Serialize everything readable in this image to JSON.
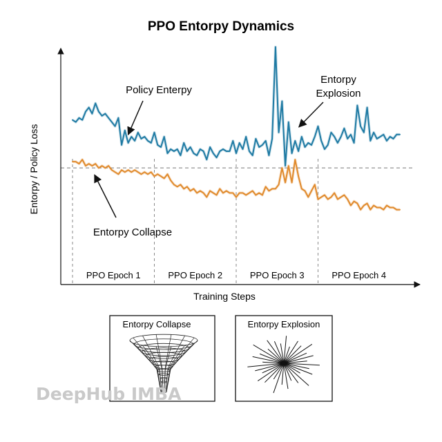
{
  "chart_data": {
    "type": "line",
    "title": "PPO Entorpy Dynamics",
    "xlabel": "Training Steps",
    "ylabel": "Entorpy / Policy Loss",
    "xlim": [
      0,
      100
    ],
    "ylim": [
      0,
      100
    ],
    "grid": false,
    "reference_line": {
      "y": 42,
      "style": "dashed",
      "color": "#777777"
    },
    "epochs": [
      {
        "label": "PPO Epoch 1",
        "start": 0,
        "end": 25
      },
      {
        "label": "PPO Epoch 2",
        "start": 25,
        "end": 50
      },
      {
        "label": "PPO Epoch 3",
        "start": 50,
        "end": 75
      },
      {
        "label": "PPO Epoch 4",
        "start": 75,
        "end": 100
      }
    ],
    "epoch_divider_x": [
      25,
      50,
      75
    ],
    "series": [
      {
        "key": "entropy",
        "color": "#1e7aa3",
        "x": [
          0,
          1,
          2,
          3,
          4,
          5,
          6,
          7,
          8,
          9,
          10,
          11,
          12,
          13,
          14,
          15,
          16,
          17,
          18,
          19,
          20,
          21,
          22,
          23,
          24,
          25,
          26,
          27,
          28,
          29,
          30,
          31,
          32,
          33,
          34,
          35,
          36,
          37,
          38,
          39,
          40,
          41,
          42,
          43,
          44,
          45,
          46,
          47,
          48,
          49,
          50,
          51,
          52,
          53,
          54,
          55,
          56,
          57,
          58,
          59,
          60,
          61,
          62,
          63,
          64,
          65,
          66,
          67,
          68,
          69,
          70,
          71,
          72,
          73,
          74,
          75,
          76,
          77,
          78,
          79,
          80,
          81,
          82,
          83,
          84,
          85,
          86,
          87,
          88,
          89,
          90,
          91,
          92,
          93,
          94,
          95,
          96,
          97,
          98,
          99,
          100
        ],
        "y": [
          65,
          64,
          66,
          65,
          69,
          71,
          68,
          73,
          69,
          67,
          68,
          66,
          64,
          62,
          66,
          53,
          60,
          54,
          57,
          55,
          59,
          56,
          57,
          55,
          54,
          59,
          53,
          52,
          57,
          49,
          51,
          50,
          51,
          48,
          54,
          50,
          52,
          49,
          48,
          51,
          50,
          46,
          52,
          49,
          47,
          50,
          51,
          50,
          50,
          55,
          49,
          54,
          51,
          57,
          50,
          48,
          56,
          52,
          53,
          55,
          48,
          56,
          100,
          59,
          74,
          43,
          64,
          49,
          55,
          50,
          57,
          52,
          54,
          53,
          57,
          62,
          55,
          51,
          53,
          59,
          57,
          54,
          57,
          61,
          56,
          58,
          54,
          72,
          62,
          59,
          71,
          55,
          59,
          56,
          57,
          58,
          55,
          57,
          56,
          58,
          58
        ]
      },
      {
        "key": "policy_loss",
        "color": "#e08a2c",
        "x": [
          0,
          1,
          2,
          3,
          4,
          5,
          6,
          7,
          8,
          9,
          10,
          11,
          12,
          13,
          14,
          15,
          16,
          17,
          18,
          19,
          20,
          21,
          22,
          23,
          24,
          25,
          26,
          27,
          28,
          29,
          30,
          31,
          32,
          33,
          34,
          35,
          36,
          37,
          38,
          39,
          40,
          41,
          42,
          43,
          44,
          45,
          46,
          47,
          48,
          49,
          50,
          51,
          52,
          53,
          54,
          55,
          56,
          57,
          58,
          59,
          60,
          61,
          62,
          63,
          64,
          65,
          66,
          67,
          68,
          69,
          70,
          71,
          72,
          73,
          74,
          75,
          76,
          77,
          78,
          79,
          80,
          81,
          82,
          83,
          84,
          85,
          86,
          87,
          88,
          89,
          90,
          91,
          92,
          93,
          94,
          95,
          96,
          97,
          98,
          99,
          100
        ],
        "y": [
          45,
          45,
          44,
          46,
          43,
          44,
          43,
          44,
          42,
          43,
          42,
          43,
          41,
          40,
          39,
          41,
          40,
          41,
          40,
          41,
          40,
          39,
          40,
          39,
          40,
          38,
          39,
          38,
          37,
          39,
          36,
          34,
          33,
          34,
          32,
          33,
          31,
          32,
          30,
          31,
          30,
          28,
          31,
          30,
          29,
          32,
          30,
          31,
          30,
          30,
          28,
          30,
          30,
          29,
          30,
          31,
          29,
          30,
          29,
          33,
          31,
          32,
          32,
          34,
          42,
          35,
          43,
          35,
          46,
          38,
          32,
          31,
          28,
          31,
          34,
          27,
          28,
          29,
          27,
          28,
          30,
          27,
          28,
          29,
          27,
          24,
          26,
          25,
          22,
          24,
          25,
          22,
          24,
          23,
          23,
          22,
          24,
          23,
          23,
          22,
          22
        ]
      }
    ],
    "annotations": [
      {
        "key": "policy",
        "lines": [
          "Policy Enterpy"
        ],
        "target_series": "entropy",
        "target_x": 17
      },
      {
        "key": "explosion",
        "lines": [
          "Entorpy",
          "Explosion"
        ],
        "target_series": "entropy",
        "target_x": 70
      },
      {
        "key": "collapse",
        "lines": [
          "Entorpy Collapse"
        ],
        "target_series": "policy_loss",
        "target_x": 8
      }
    ]
  },
  "insets": {
    "collapse_title": "Entorpy Collapse",
    "explosion_title": "Entorpy Explosion"
  },
  "watermark": "DeepHub IMBA"
}
